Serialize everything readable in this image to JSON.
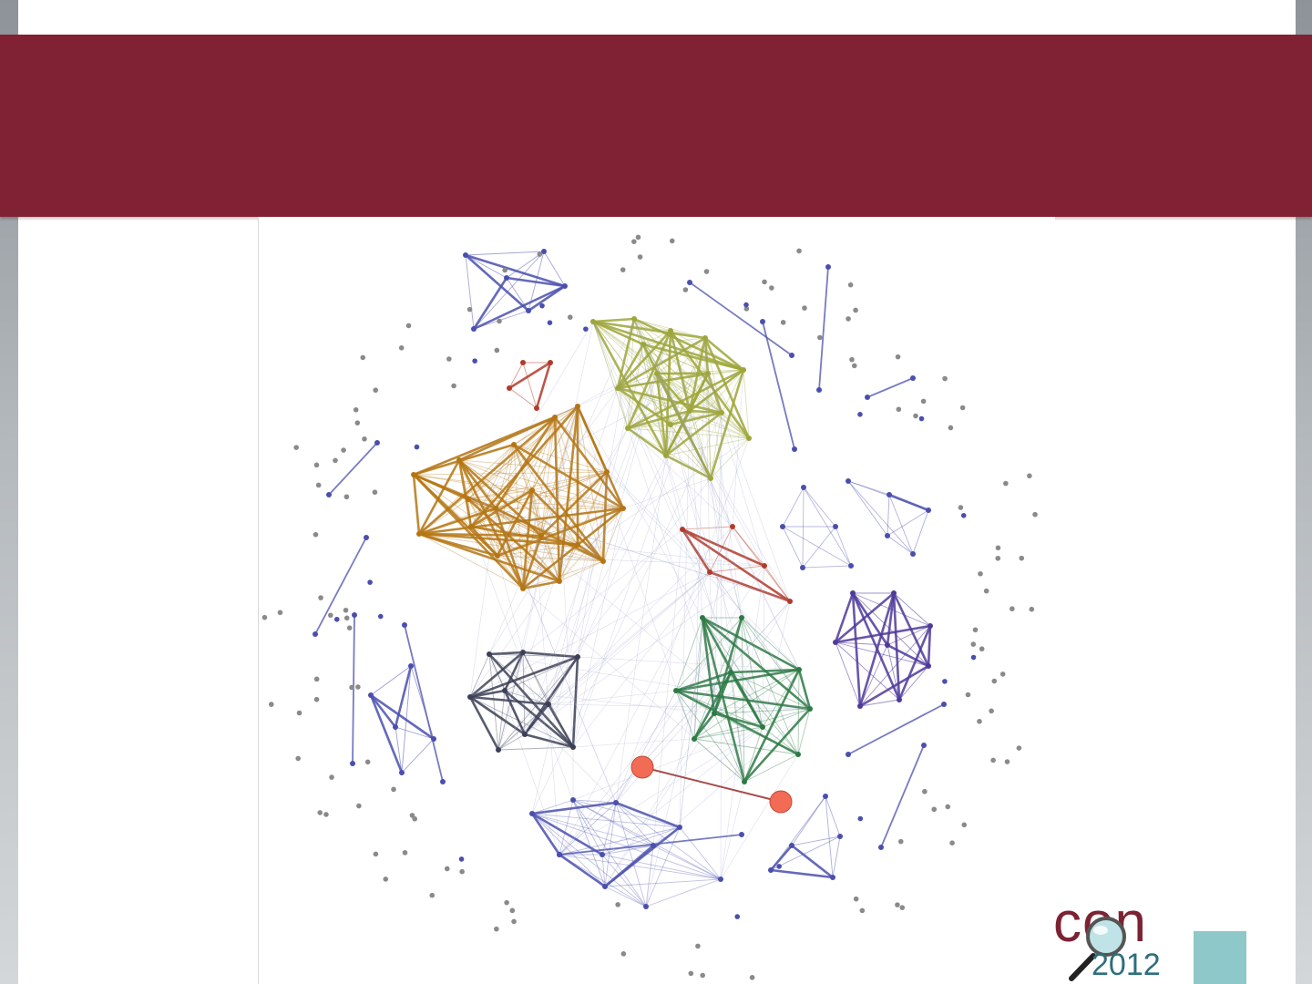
{
  "slide": {
    "banner_color": "#802233",
    "accent_color": "#8ec8c8"
  },
  "logo": {
    "text": "con",
    "year": "2012",
    "icon": "magnifier-icon",
    "text_color": "#7d2233",
    "year_color": "#2d6f7d"
  },
  "graph": {
    "clusters": [
      {
        "name": "yellow-green",
        "color": "#9ea63a"
      },
      {
        "name": "orange",
        "color": "#b57512"
      },
      {
        "name": "red",
        "color": "#b23a2a"
      },
      {
        "name": "dark-slate",
        "color": "#3c3f55"
      },
      {
        "name": "green",
        "color": "#2d7a44"
      },
      {
        "name": "indigo",
        "color": "#4d3a9a"
      },
      {
        "name": "blue",
        "color": "#4a4fae"
      },
      {
        "name": "isolated",
        "color": "#8a8a8a"
      }
    ],
    "highlight": {
      "color": "#f26b55",
      "edge_color": "#9b3b37"
    }
  }
}
